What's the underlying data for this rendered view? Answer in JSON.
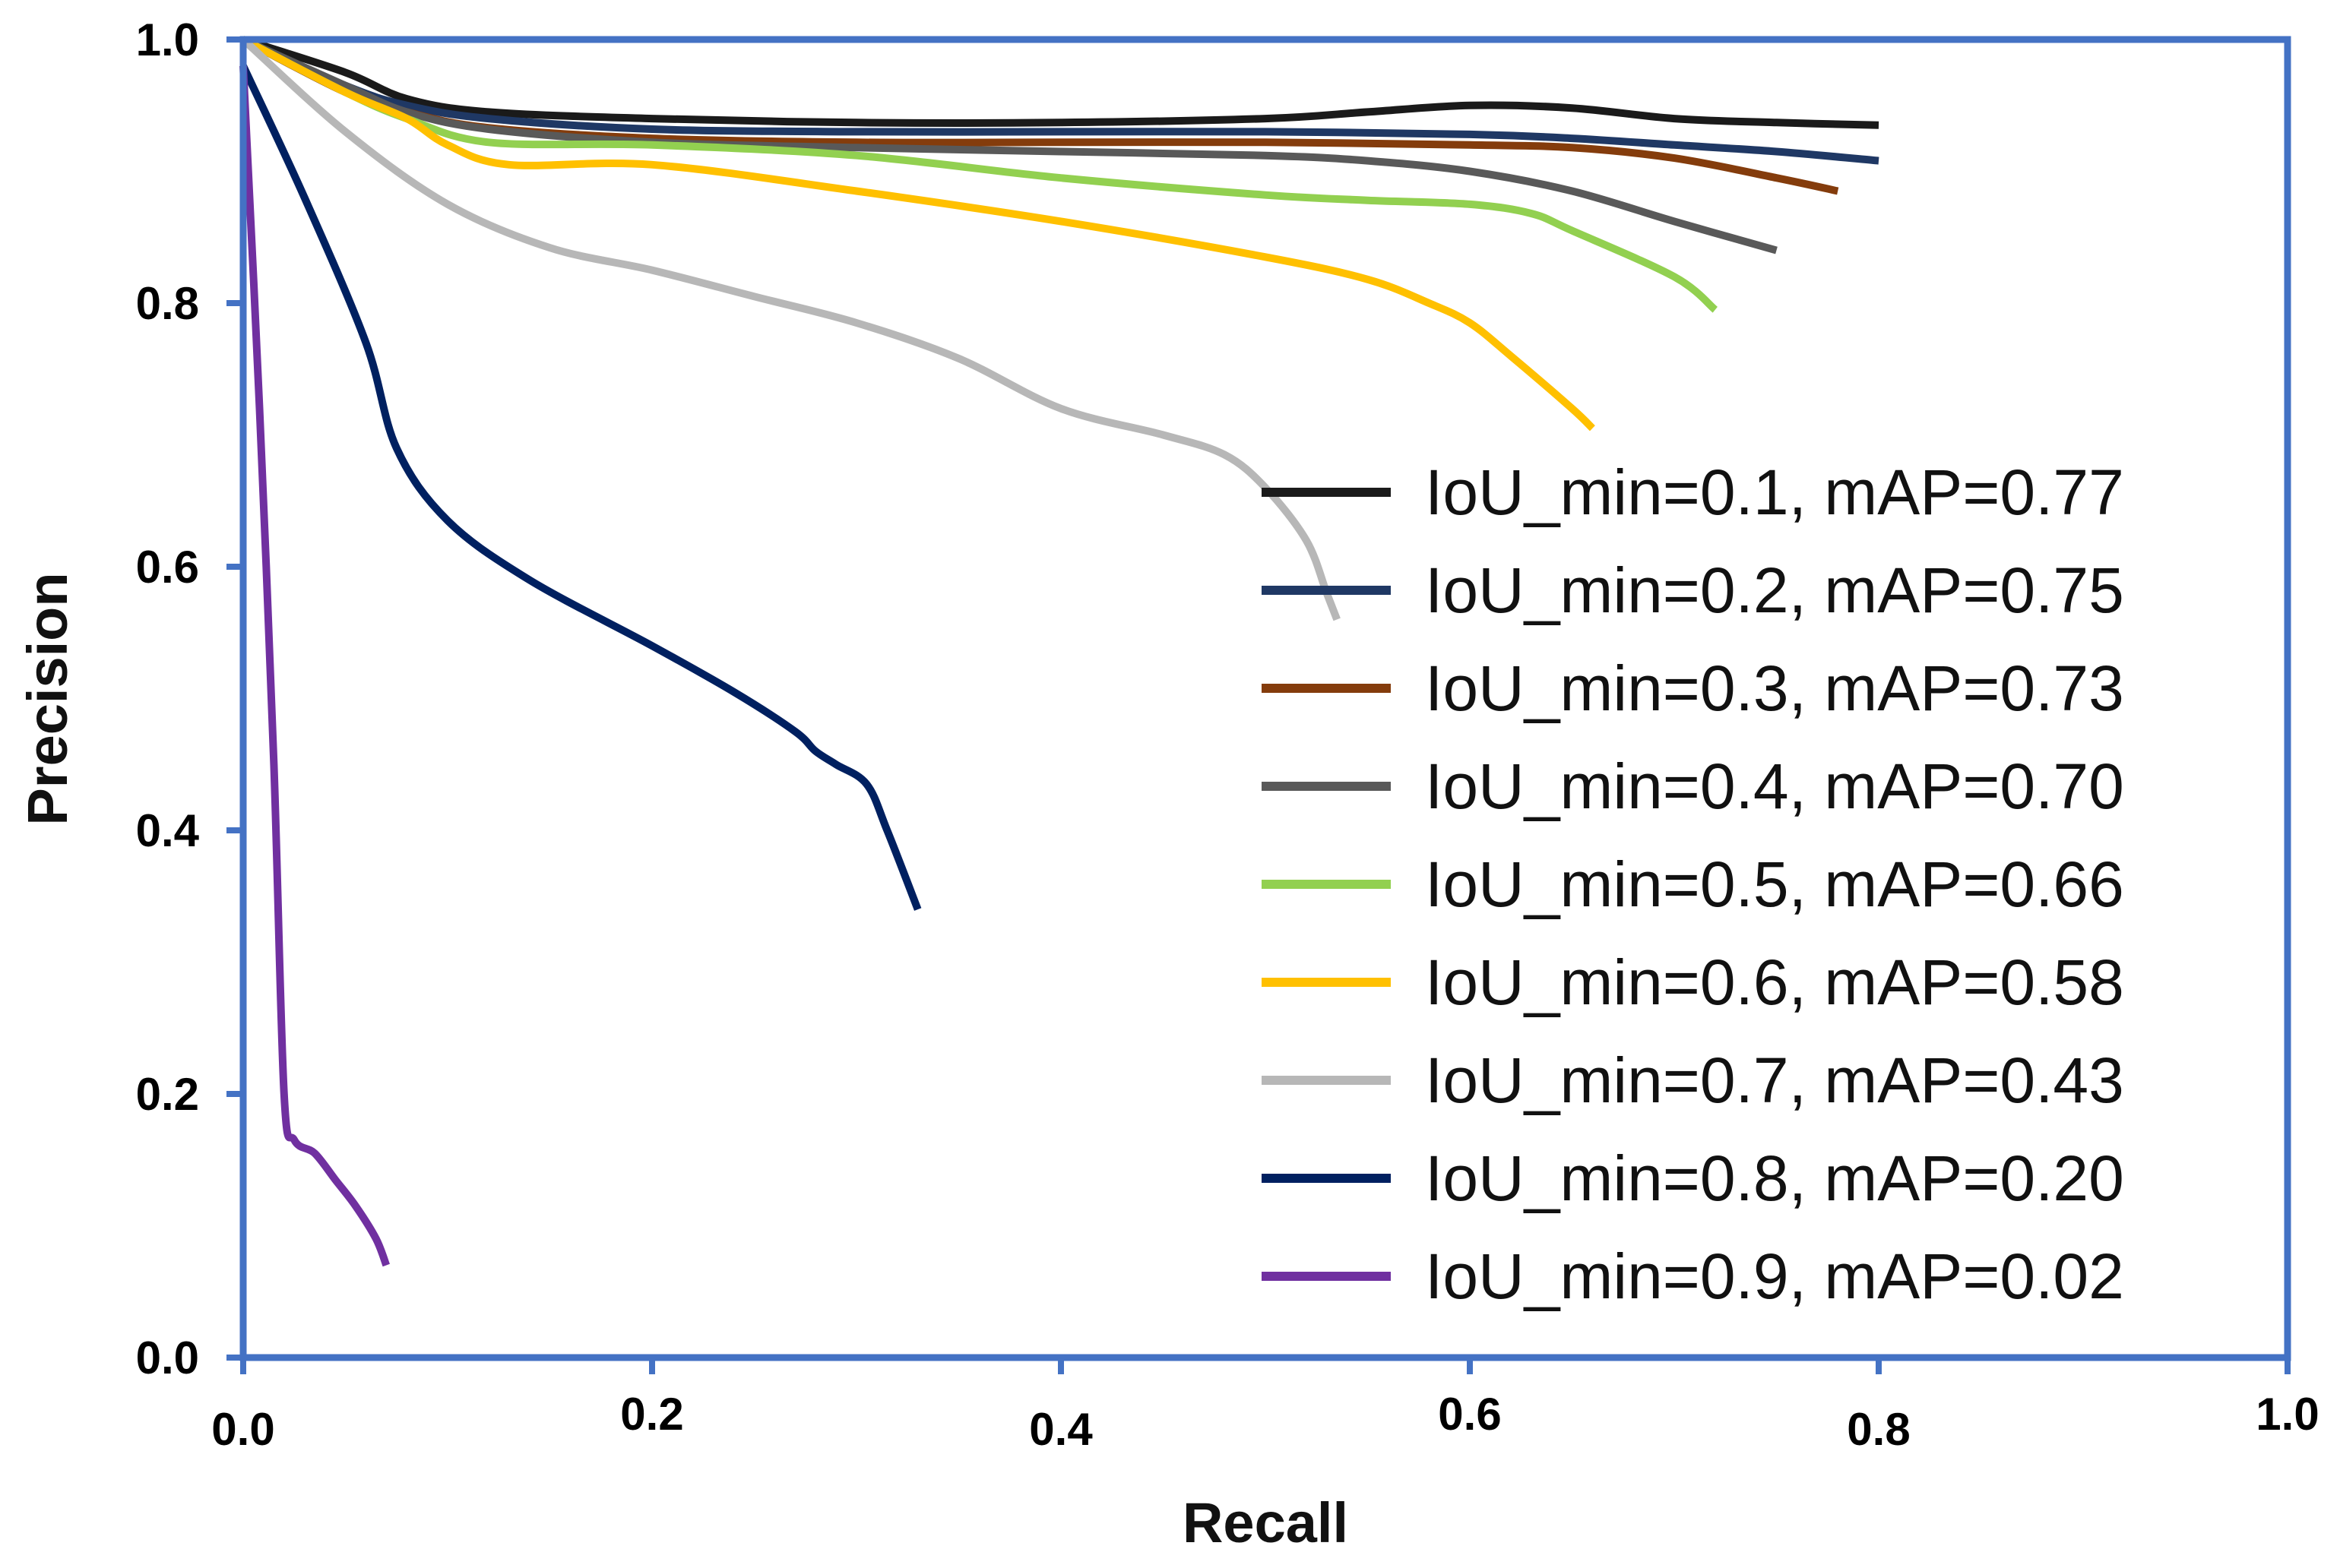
{
  "chart_data": {
    "type": "line",
    "title": "",
    "xlabel": "Recall",
    "ylabel": "Precision",
    "xlim": [
      0.0,
      1.0
    ],
    "ylim": [
      0.0,
      1.0
    ],
    "xticks": [
      "0.0",
      "0.2",
      "0.4",
      "0.6",
      "0.8",
      "1.0"
    ],
    "yticks": [
      "0.0",
      "0.2",
      "0.4",
      "0.6",
      "0.8",
      "1.0"
    ],
    "grid": false,
    "legend_position": "right",
    "frame_color": "#4472C4",
    "series": [
      {
        "name": "IoU_min=0.1, mAP=0.77",
        "color": "#1a1a1a",
        "points": [
          [
            0.0,
            1.0
          ],
          [
            0.05,
            0.975
          ],
          [
            0.08,
            0.955
          ],
          [
            0.12,
            0.945
          ],
          [
            0.2,
            0.94
          ],
          [
            0.3,
            0.937
          ],
          [
            0.4,
            0.937
          ],
          [
            0.5,
            0.94
          ],
          [
            0.55,
            0.945
          ],
          [
            0.6,
            0.95
          ],
          [
            0.65,
            0.948
          ],
          [
            0.7,
            0.94
          ],
          [
            0.75,
            0.937
          ],
          [
            0.8,
            0.935
          ]
        ]
      },
      {
        "name": "IoU_min=0.2, mAP=0.75",
        "color": "#1f3864",
        "points": [
          [
            0.0,
            1.0
          ],
          [
            0.05,
            0.965
          ],
          [
            0.08,
            0.95
          ],
          [
            0.12,
            0.94
          ],
          [
            0.2,
            0.932
          ],
          [
            0.3,
            0.93
          ],
          [
            0.4,
            0.93
          ],
          [
            0.5,
            0.93
          ],
          [
            0.6,
            0.928
          ],
          [
            0.65,
            0.925
          ],
          [
            0.7,
            0.92
          ],
          [
            0.75,
            0.915
          ],
          [
            0.8,
            0.908
          ]
        ]
      },
      {
        "name": "IoU_min=0.3, mAP=0.73",
        "color": "#843c0c",
        "points": [
          [
            0.0,
            1.0
          ],
          [
            0.05,
            0.96
          ],
          [
            0.08,
            0.945
          ],
          [
            0.12,
            0.933
          ],
          [
            0.2,
            0.925
          ],
          [
            0.3,
            0.922
          ],
          [
            0.4,
            0.922
          ],
          [
            0.5,
            0.922
          ],
          [
            0.6,
            0.92
          ],
          [
            0.65,
            0.918
          ],
          [
            0.7,
            0.91
          ],
          [
            0.75,
            0.895
          ],
          [
            0.78,
            0.885
          ]
        ]
      },
      {
        "name": "IoU_min=0.4, mAP=0.70",
        "color": "#595959",
        "points": [
          [
            0.0,
            1.0
          ],
          [
            0.05,
            0.965
          ],
          [
            0.08,
            0.945
          ],
          [
            0.12,
            0.932
          ],
          [
            0.2,
            0.922
          ],
          [
            0.3,
            0.918
          ],
          [
            0.4,
            0.915
          ],
          [
            0.5,
            0.912
          ],
          [
            0.55,
            0.908
          ],
          [
            0.6,
            0.9
          ],
          [
            0.65,
            0.885
          ],
          [
            0.7,
            0.862
          ],
          [
            0.75,
            0.84
          ]
        ]
      },
      {
        "name": "IoU_min=0.5, mAP=0.66",
        "color": "#92d050",
        "points": [
          [
            0.0,
            1.0
          ],
          [
            0.05,
            0.96
          ],
          [
            0.08,
            0.94
          ],
          [
            0.12,
            0.922
          ],
          [
            0.2,
            0.92
          ],
          [
            0.3,
            0.912
          ],
          [
            0.4,
            0.895
          ],
          [
            0.5,
            0.882
          ],
          [
            0.55,
            0.878
          ],
          [
            0.6,
            0.875
          ],
          [
            0.63,
            0.868
          ],
          [
            0.65,
            0.855
          ],
          [
            0.7,
            0.82
          ],
          [
            0.72,
            0.795
          ]
        ]
      },
      {
        "name": "IoU_min=0.6, mAP=0.58",
        "color": "#ffc000",
        "points": [
          [
            0.0,
            1.0
          ],
          [
            0.05,
            0.96
          ],
          [
            0.08,
            0.94
          ],
          [
            0.1,
            0.92
          ],
          [
            0.13,
            0.905
          ],
          [
            0.2,
            0.905
          ],
          [
            0.3,
            0.885
          ],
          [
            0.4,
            0.862
          ],
          [
            0.5,
            0.835
          ],
          [
            0.55,
            0.818
          ],
          [
            0.58,
            0.8
          ],
          [
            0.6,
            0.785
          ],
          [
            0.62,
            0.76
          ],
          [
            0.65,
            0.72
          ],
          [
            0.66,
            0.705
          ]
        ]
      },
      {
        "name": "IoU_min=0.7, mAP=0.43",
        "color": "#b7b7b7",
        "points": [
          [
            0.0,
            1.0
          ],
          [
            0.05,
            0.93
          ],
          [
            0.1,
            0.875
          ],
          [
            0.15,
            0.842
          ],
          [
            0.2,
            0.825
          ],
          [
            0.25,
            0.805
          ],
          [
            0.3,
            0.785
          ],
          [
            0.35,
            0.758
          ],
          [
            0.4,
            0.72
          ],
          [
            0.45,
            0.7
          ],
          [
            0.48,
            0.685
          ],
          [
            0.5,
            0.66
          ],
          [
            0.52,
            0.62
          ],
          [
            0.53,
            0.58
          ],
          [
            0.535,
            0.56
          ]
        ]
      },
      {
        "name": "IoU_min=0.8, mAP=0.20",
        "color": "#002060",
        "points": [
          [
            0.0,
            0.98
          ],
          [
            0.03,
            0.88
          ],
          [
            0.06,
            0.77
          ],
          [
            0.075,
            0.69
          ],
          [
            0.1,
            0.635
          ],
          [
            0.14,
            0.59
          ],
          [
            0.2,
            0.54
          ],
          [
            0.24,
            0.505
          ],
          [
            0.27,
            0.475
          ],
          [
            0.28,
            0.46
          ],
          [
            0.29,
            0.45
          ],
          [
            0.305,
            0.435
          ],
          [
            0.315,
            0.4
          ],
          [
            0.33,
            0.34
          ]
        ]
      },
      {
        "name": "IoU_min=0.9, mAP=0.02",
        "color": "#7030a0",
        "points": [
          [
            0.0,
            0.98
          ],
          [
            0.008,
            0.72
          ],
          [
            0.015,
            0.45
          ],
          [
            0.02,
            0.2
          ],
          [
            0.025,
            0.165
          ],
          [
            0.035,
            0.155
          ],
          [
            0.045,
            0.135
          ],
          [
            0.055,
            0.115
          ],
          [
            0.065,
            0.09
          ],
          [
            0.07,
            0.07
          ]
        ]
      }
    ]
  }
}
